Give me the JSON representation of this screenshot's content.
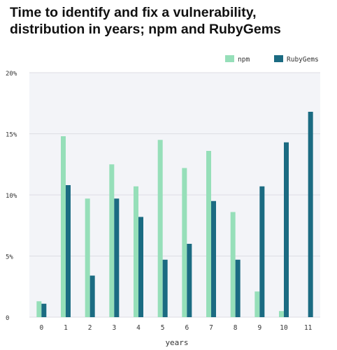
{
  "chart_data": {
    "type": "bar",
    "title_lines": [
      "Time to identify and fix a vulnerability,",
      "distribution in years; npm and RubyGems"
    ],
    "xlabel": "years",
    "ylabel": "",
    "categories": [
      "0",
      "1",
      "2",
      "3",
      "4",
      "5",
      "6",
      "7",
      "8",
      "9",
      "10",
      "11"
    ],
    "ylim": [
      0,
      20
    ],
    "yticks": [
      0,
      5,
      10,
      15,
      20
    ],
    "ytick_labels": [
      "0",
      "5%",
      "10%",
      "15%",
      "20%"
    ],
    "grid": "horizontal",
    "legend_position": "top-right",
    "series": [
      {
        "name": "npm",
        "color": "#96dfb9",
        "values": [
          1.3,
          14.8,
          9.7,
          12.5,
          10.7,
          14.5,
          12.2,
          13.6,
          8.6,
          2.1,
          0.5,
          0
        ]
      },
      {
        "name": "RubyGems",
        "color": "#1b6b82",
        "values": [
          1.1,
          10.8,
          3.4,
          9.7,
          8.2,
          4.7,
          6.0,
          9.5,
          4.7,
          10.7,
          14.3,
          16.8
        ]
      }
    ],
    "colors": {
      "plot_bg": "#f3f4f8",
      "grid": "#dcdde3",
      "text": "#333333"
    }
  }
}
